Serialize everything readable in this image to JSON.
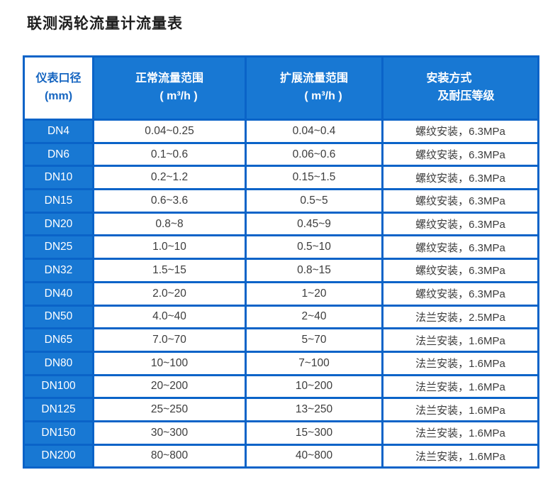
{
  "page": {
    "title": "联测涡轮流量计流量表"
  },
  "colors": {
    "cell_blue": "#1878d3",
    "border_blue": "#0a63c8",
    "header_text_white": "#ffffff",
    "first_header_text_blue": "#1464c0",
    "data_text": "#3c3c3c"
  },
  "table": {
    "columns": [
      {
        "line1": "仪表口径",
        "line2": "(mm)"
      },
      {
        "line1": "正常流量范围",
        "line2": "( m³/h )"
      },
      {
        "line1": "扩展流量范围",
        "line2": "( m³/h )"
      },
      {
        "line1": "安装方式",
        "line2": "及耐压等级"
      }
    ],
    "rows": [
      {
        "dn": "DN4",
        "normal": "0.04~0.25",
        "extended": "0.04~0.4",
        "install": "螺纹安装，6.3MPa"
      },
      {
        "dn": "DN6",
        "normal": "0.1~0.6",
        "extended": "0.06~0.6",
        "install": "螺纹安装，6.3MPa"
      },
      {
        "dn": "DN10",
        "normal": "0.2~1.2",
        "extended": "0.15~1.5",
        "install": "螺纹安装，6.3MPa"
      },
      {
        "dn": "DN15",
        "normal": "0.6~3.6",
        "extended": "0.5~5",
        "install": "螺纹安装，6.3MPa"
      },
      {
        "dn": "DN20",
        "normal": "0.8~8",
        "extended": "0.45~9",
        "install": "螺纹安装，6.3MPa"
      },
      {
        "dn": "DN25",
        "normal": "1.0~10",
        "extended": "0.5~10",
        "install": "螺纹安装，6.3MPa"
      },
      {
        "dn": "DN32",
        "normal": "1.5~15",
        "extended": "0.8~15",
        "install": "螺纹安装，6.3MPa"
      },
      {
        "dn": "DN40",
        "normal": "2.0~20",
        "extended": "1~20",
        "install": "螺纹安装，6.3MPa"
      },
      {
        "dn": "DN50",
        "normal": "4.0~40",
        "extended": "2~40",
        "install": "法兰安装，2.5MPa"
      },
      {
        "dn": "DN65",
        "normal": "7.0~70",
        "extended": "5~70",
        "install": "法兰安装，1.6MPa"
      },
      {
        "dn": "DN80",
        "normal": "10~100",
        "extended": "7~100",
        "install": "法兰安装，1.6MPa"
      },
      {
        "dn": "DN100",
        "normal": "20~200",
        "extended": "10~200",
        "install": "法兰安装，1.6MPa"
      },
      {
        "dn": "DN125",
        "normal": "25~250",
        "extended": "13~250",
        "install": "法兰安装，1.6MPa"
      },
      {
        "dn": "DN150",
        "normal": "30~300",
        "extended": "15~300",
        "install": "法兰安装，1.6MPa"
      },
      {
        "dn": "DN200",
        "normal": "80~800",
        "extended": "40~800",
        "install": "法兰安装，1.6MPa"
      }
    ]
  }
}
